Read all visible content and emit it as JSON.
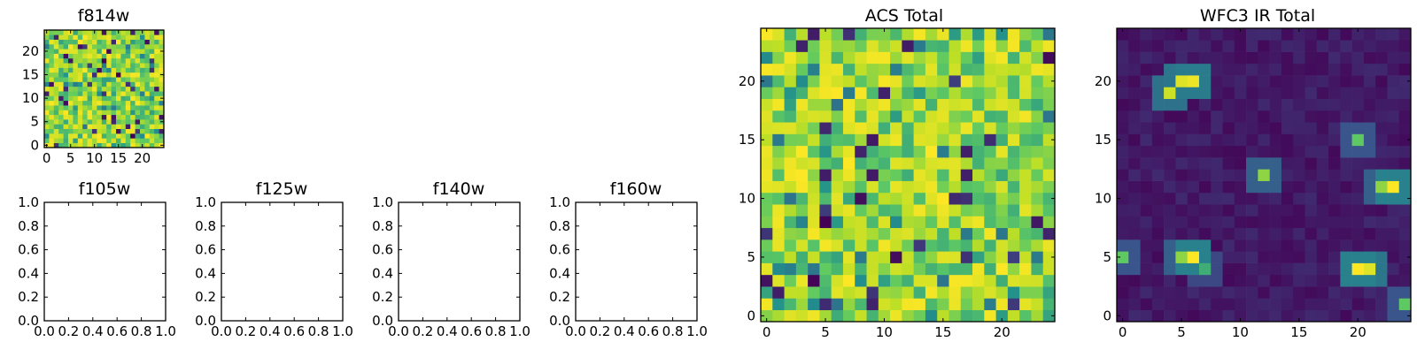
{
  "chart_data": [
    {
      "type": "heatmap",
      "title": "f814w",
      "grid_size": 25,
      "colormap": [
        "#440154",
        "#3b528b",
        "#21918c",
        "#5ec962",
        "#bddf26",
        "#fde725"
      ],
      "value_range": [
        0,
        1
      ],
      "xlim": [
        -0.5,
        24.5
      ],
      "ylim": [
        -0.5,
        24.5
      ],
      "xticks": [
        "0",
        "5",
        "10",
        "15",
        "20"
      ],
      "yticks": [
        "0",
        "5",
        "10",
        "15",
        "20"
      ],
      "pattern": "noise",
      "seed": 7
    },
    {
      "type": "empty",
      "title": "f105w",
      "xlim": [
        0,
        1
      ],
      "ylim": [
        0,
        1
      ],
      "xticks": [
        "0.0",
        "0.2",
        "0.4",
        "0.6",
        "0.8",
        "1.0"
      ],
      "yticks": [
        "0.0",
        "0.2",
        "0.4",
        "0.6",
        "0.8",
        "1.0"
      ]
    },
    {
      "type": "empty",
      "title": "f125w",
      "xlim": [
        0,
        1
      ],
      "ylim": [
        0,
        1
      ],
      "xticks": [
        "0.0",
        "0.2",
        "0.4",
        "0.6",
        "0.8",
        "1.0"
      ],
      "yticks": [
        "0.0",
        "0.2",
        "0.4",
        "0.6",
        "0.8",
        "1.0"
      ]
    },
    {
      "type": "empty",
      "title": "f140w",
      "xlim": [
        0,
        1
      ],
      "ylim": [
        0,
        1
      ],
      "xticks": [
        "0.0",
        "0.2",
        "0.4",
        "0.6",
        "0.8",
        "1.0"
      ],
      "yticks": [
        "0.0",
        "0.2",
        "0.4",
        "0.6",
        "0.8",
        "1.0"
      ]
    },
    {
      "type": "empty",
      "title": "f160w",
      "xlim": [
        0,
        1
      ],
      "ylim": [
        0,
        1
      ],
      "xticks": [
        "0.0",
        "0.2",
        "0.4",
        "0.6",
        "0.8",
        "1.0"
      ],
      "yticks": [
        "0.0",
        "0.2",
        "0.4",
        "0.6",
        "0.8",
        "1.0"
      ]
    },
    {
      "type": "heatmap",
      "title": "ACS Total",
      "grid_size": 25,
      "value_range": [
        0,
        1
      ],
      "xlim": [
        -0.5,
        24.5
      ],
      "ylim": [
        -0.5,
        24.5
      ],
      "xticks": [
        "0",
        "5",
        "10",
        "15",
        "20"
      ],
      "yticks": [
        "0",
        "5",
        "10",
        "15",
        "20"
      ],
      "pattern": "noise",
      "seed": 23
    },
    {
      "type": "heatmap",
      "title": "WFC3 IR Total",
      "grid_size": 25,
      "value_range": [
        0,
        1
      ],
      "xlim": [
        -0.5,
        24.5
      ],
      "ylim": [
        -0.5,
        24.5
      ],
      "xticks": [
        "0",
        "5",
        "10",
        "15",
        "20"
      ],
      "yticks": [
        "0",
        "5",
        "10",
        "15",
        "20"
      ],
      "pattern": "background-with-sources",
      "seed": 41,
      "sources": [
        {
          "x": 4,
          "y": 19,
          "amp": 0.85
        },
        {
          "x": 5,
          "y": 20,
          "amp": 0.9
        },
        {
          "x": 6,
          "y": 20,
          "amp": 0.95
        },
        {
          "x": 20,
          "y": 15,
          "amp": 0.6
        },
        {
          "x": 12,
          "y": 12,
          "amp": 0.7
        },
        {
          "x": 23,
          "y": 11,
          "amp": 1.0
        },
        {
          "x": 22,
          "y": 11,
          "amp": 0.7
        },
        {
          "x": 6,
          "y": 5,
          "amp": 1.0
        },
        {
          "x": 5,
          "y": 5,
          "amp": 0.7
        },
        {
          "x": 7,
          "y": 4,
          "amp": 0.5
        },
        {
          "x": 0,
          "y": 5,
          "amp": 0.6
        },
        {
          "x": 20,
          "y": 4,
          "amp": 1.0
        },
        {
          "x": 21,
          "y": 4,
          "amp": 0.9
        },
        {
          "x": 24,
          "y": 1,
          "amp": 0.6
        }
      ]
    }
  ]
}
